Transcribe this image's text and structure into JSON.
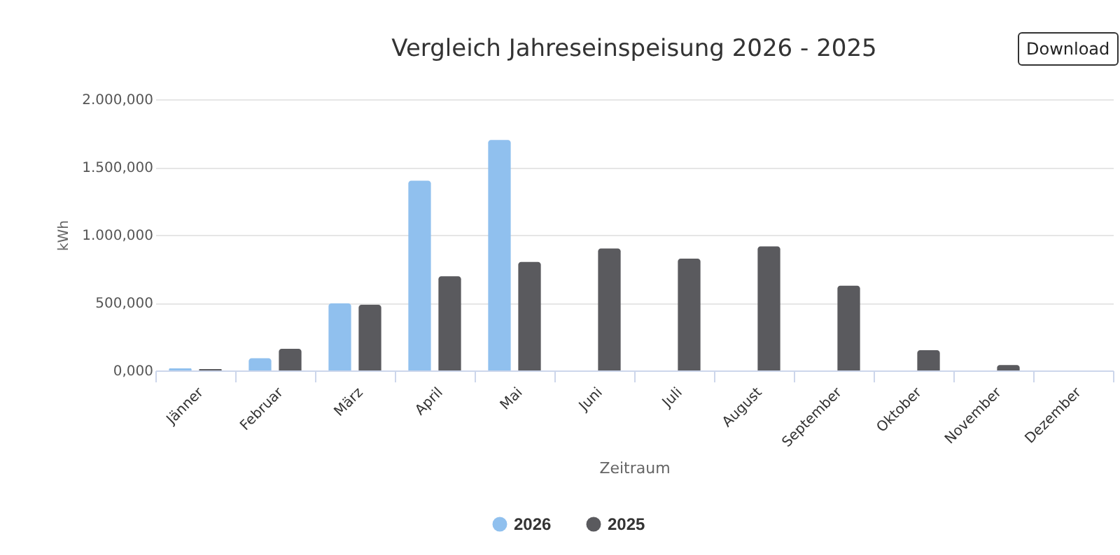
{
  "chart_data": {
    "type": "bar",
    "title": "Vergleich Jahreseinspeisung 2026 - 2025",
    "xlabel": "Zeitraum",
    "ylabel": "kWh",
    "annotations": [
      "Download"
    ],
    "categories": [
      "Jänner",
      "Februar",
      "März",
      "April",
      "Mai",
      "Juni",
      "Juli",
      "August",
      "September",
      "Oktober",
      "November",
      "Dezember"
    ],
    "series": [
      {
        "name": "2026",
        "color": "#90c0ee",
        "values": [
          15,
          90,
          495,
          1400,
          1700,
          null,
          null,
          null,
          null,
          null,
          null,
          null
        ]
      },
      {
        "name": "2025",
        "color": "#5a5a5e",
        "values": [
          10,
          160,
          485,
          695,
          800,
          900,
          825,
          915,
          625,
          150,
          40,
          0
        ]
      }
    ],
    "ylim": [
      0,
      2000
    ],
    "yticks": [
      {
        "value": 0,
        "label": "0,000"
      },
      {
        "value": 500,
        "label": "500,000"
      },
      {
        "value": 1000,
        "label": "1.000,000"
      },
      {
        "value": 1500,
        "label": "1.500,000"
      },
      {
        "value": 2000,
        "label": "2.000,000"
      }
    ],
    "grid": "y",
    "legend": "bottom"
  }
}
